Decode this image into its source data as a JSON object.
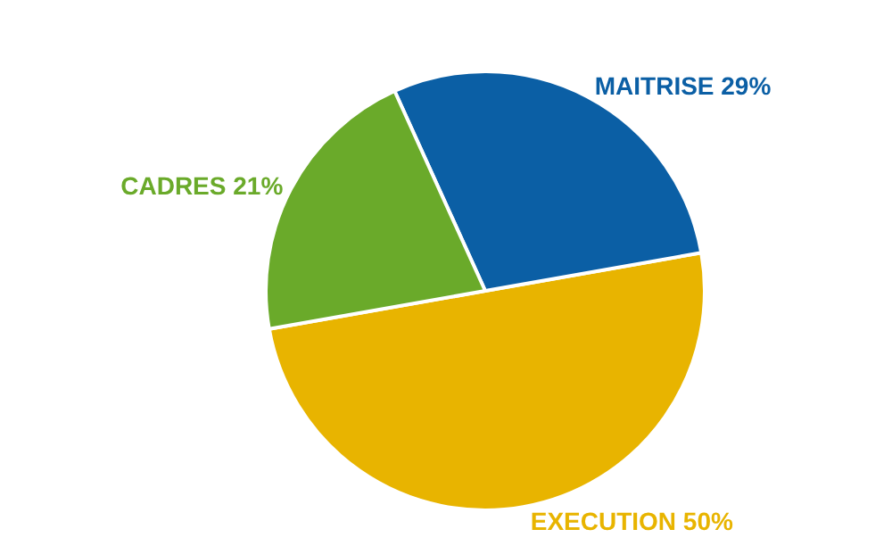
{
  "chart_data": {
    "type": "pie",
    "categories": [
      "EXECUTION",
      "MAITRISE",
      "CADRES"
    ],
    "values": [
      50,
      29,
      21
    ],
    "value_labels": [
      "50%",
      "29%",
      "21%"
    ],
    "colors": [
      "#e8b400",
      "#0b5fa5",
      "#6aaa2a"
    ],
    "legend": false
  }
}
